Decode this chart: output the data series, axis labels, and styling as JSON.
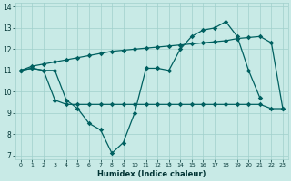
{
  "xlabel": "Humidex (Indice chaleur)",
  "xlim": [
    -0.5,
    23.5
  ],
  "ylim": [
    6.8,
    14.2
  ],
  "yticks": [
    7,
    8,
    9,
    10,
    11,
    12,
    13,
    14
  ],
  "xticks": [
    0,
    1,
    2,
    3,
    4,
    5,
    6,
    7,
    8,
    9,
    10,
    11,
    12,
    13,
    14,
    15,
    16,
    17,
    18,
    19,
    20,
    21,
    22,
    23
  ],
  "bg_color": "#c8eae6",
  "line_color": "#006060",
  "grid_color": "#a0d0cc",
  "line1_x": [
    0,
    1,
    2,
    3,
    4,
    5,
    6,
    7,
    8,
    9,
    10,
    11,
    12,
    13,
    14,
    15,
    16,
    17,
    18,
    19,
    20,
    21
  ],
  "line1_y": [
    11.0,
    11.1,
    11.0,
    11.0,
    9.6,
    9.2,
    8.5,
    8.2,
    7.1,
    7.6,
    9.0,
    11.1,
    11.1,
    11.0,
    12.0,
    12.6,
    12.9,
    13.0,
    13.3,
    12.6,
    11.0,
    9.7
  ],
  "line2_x": [
    0,
    1,
    2,
    3,
    4,
    5,
    6,
    7,
    8,
    9,
    10,
    11,
    12,
    13,
    14,
    15,
    16,
    17,
    18,
    19,
    20,
    21,
    22,
    23
  ],
  "line2_y": [
    11.0,
    11.2,
    11.3,
    11.4,
    11.5,
    11.6,
    11.7,
    11.8,
    11.9,
    11.95,
    12.0,
    12.05,
    12.1,
    12.15,
    12.2,
    12.25,
    12.3,
    12.35,
    12.4,
    12.5,
    12.55,
    12.6,
    12.3,
    9.2
  ],
  "line3_x": [
    0,
    1,
    2,
    3,
    4,
    5,
    6,
    7,
    8,
    9,
    10,
    11,
    12,
    13,
    14,
    15,
    16,
    17,
    18,
    19,
    20,
    21,
    22,
    23
  ],
  "line3_y": [
    11.0,
    11.1,
    11.0,
    9.6,
    9.4,
    9.4,
    9.4,
    9.4,
    9.4,
    9.4,
    9.4,
    9.4,
    9.4,
    9.4,
    9.4,
    9.4,
    9.4,
    9.4,
    9.4,
    9.4,
    9.4,
    9.4,
    9.2,
    9.2
  ]
}
